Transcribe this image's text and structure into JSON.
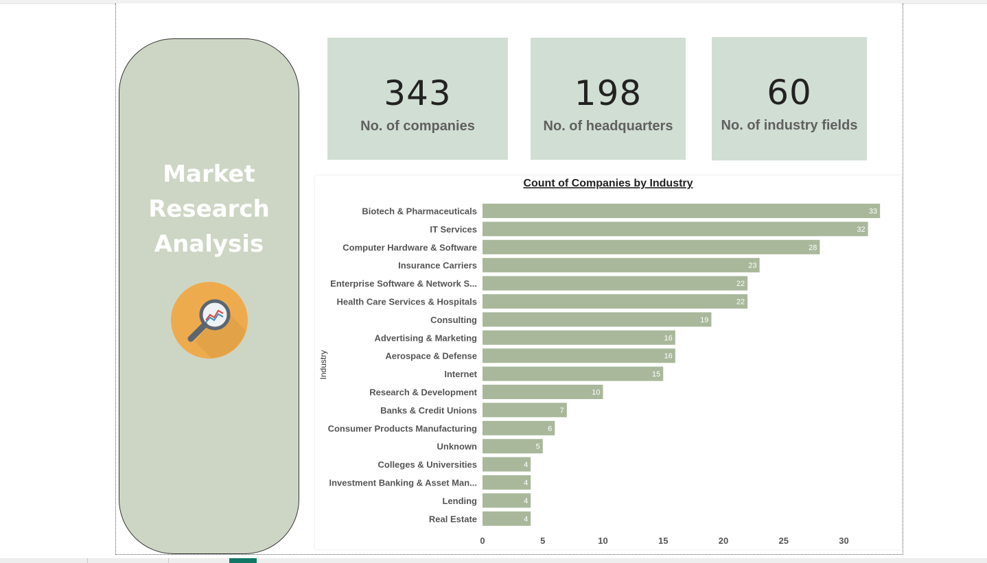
{
  "title_card": {
    "lines": [
      "Market",
      "Research",
      "Analysis"
    ],
    "logo_icon": "magnifier-chart-icon",
    "bg_color": "#cdd6c4",
    "logo_color": "#eeab4e"
  },
  "kpis": [
    {
      "value": "343",
      "label": "No. of companies"
    },
    {
      "value": "198",
      "label": "No. of headquarters"
    },
    {
      "value": "60",
      "label": "No. of industry fields"
    }
  ],
  "colors": {
    "kpi_bg": "#d1ded3",
    "bar": "#a9b89b"
  },
  "chart_data": {
    "type": "bar",
    "orientation": "horizontal",
    "title": "Count of Companies by Industry",
    "ylabel": "Industry",
    "xlabel": "",
    "xlim": [
      0,
      33
    ],
    "xticks": [
      0,
      5,
      10,
      15,
      20,
      25,
      30
    ],
    "categories": [
      "Biotech & Pharmaceuticals",
      "IT Services",
      "Computer Hardware & Software",
      "Insurance Carriers",
      "Enterprise Software & Network S...",
      "Health Care Services & Hospitals",
      "Consulting",
      "Advertising & Marketing",
      "Aerospace & Defense",
      "Internet",
      "Research & Development",
      "Banks & Credit Unions",
      "Consumer Products Manufacturing",
      "Unknown",
      "Colleges & Universities",
      "Investment Banking & Asset Man...",
      "Lending",
      "Real Estate"
    ],
    "values": [
      33,
      32,
      28,
      23,
      22,
      22,
      19,
      16,
      16,
      15,
      10,
      7,
      6,
      5,
      4,
      4,
      4,
      4
    ],
    "data_labels": true,
    "grid": false
  }
}
